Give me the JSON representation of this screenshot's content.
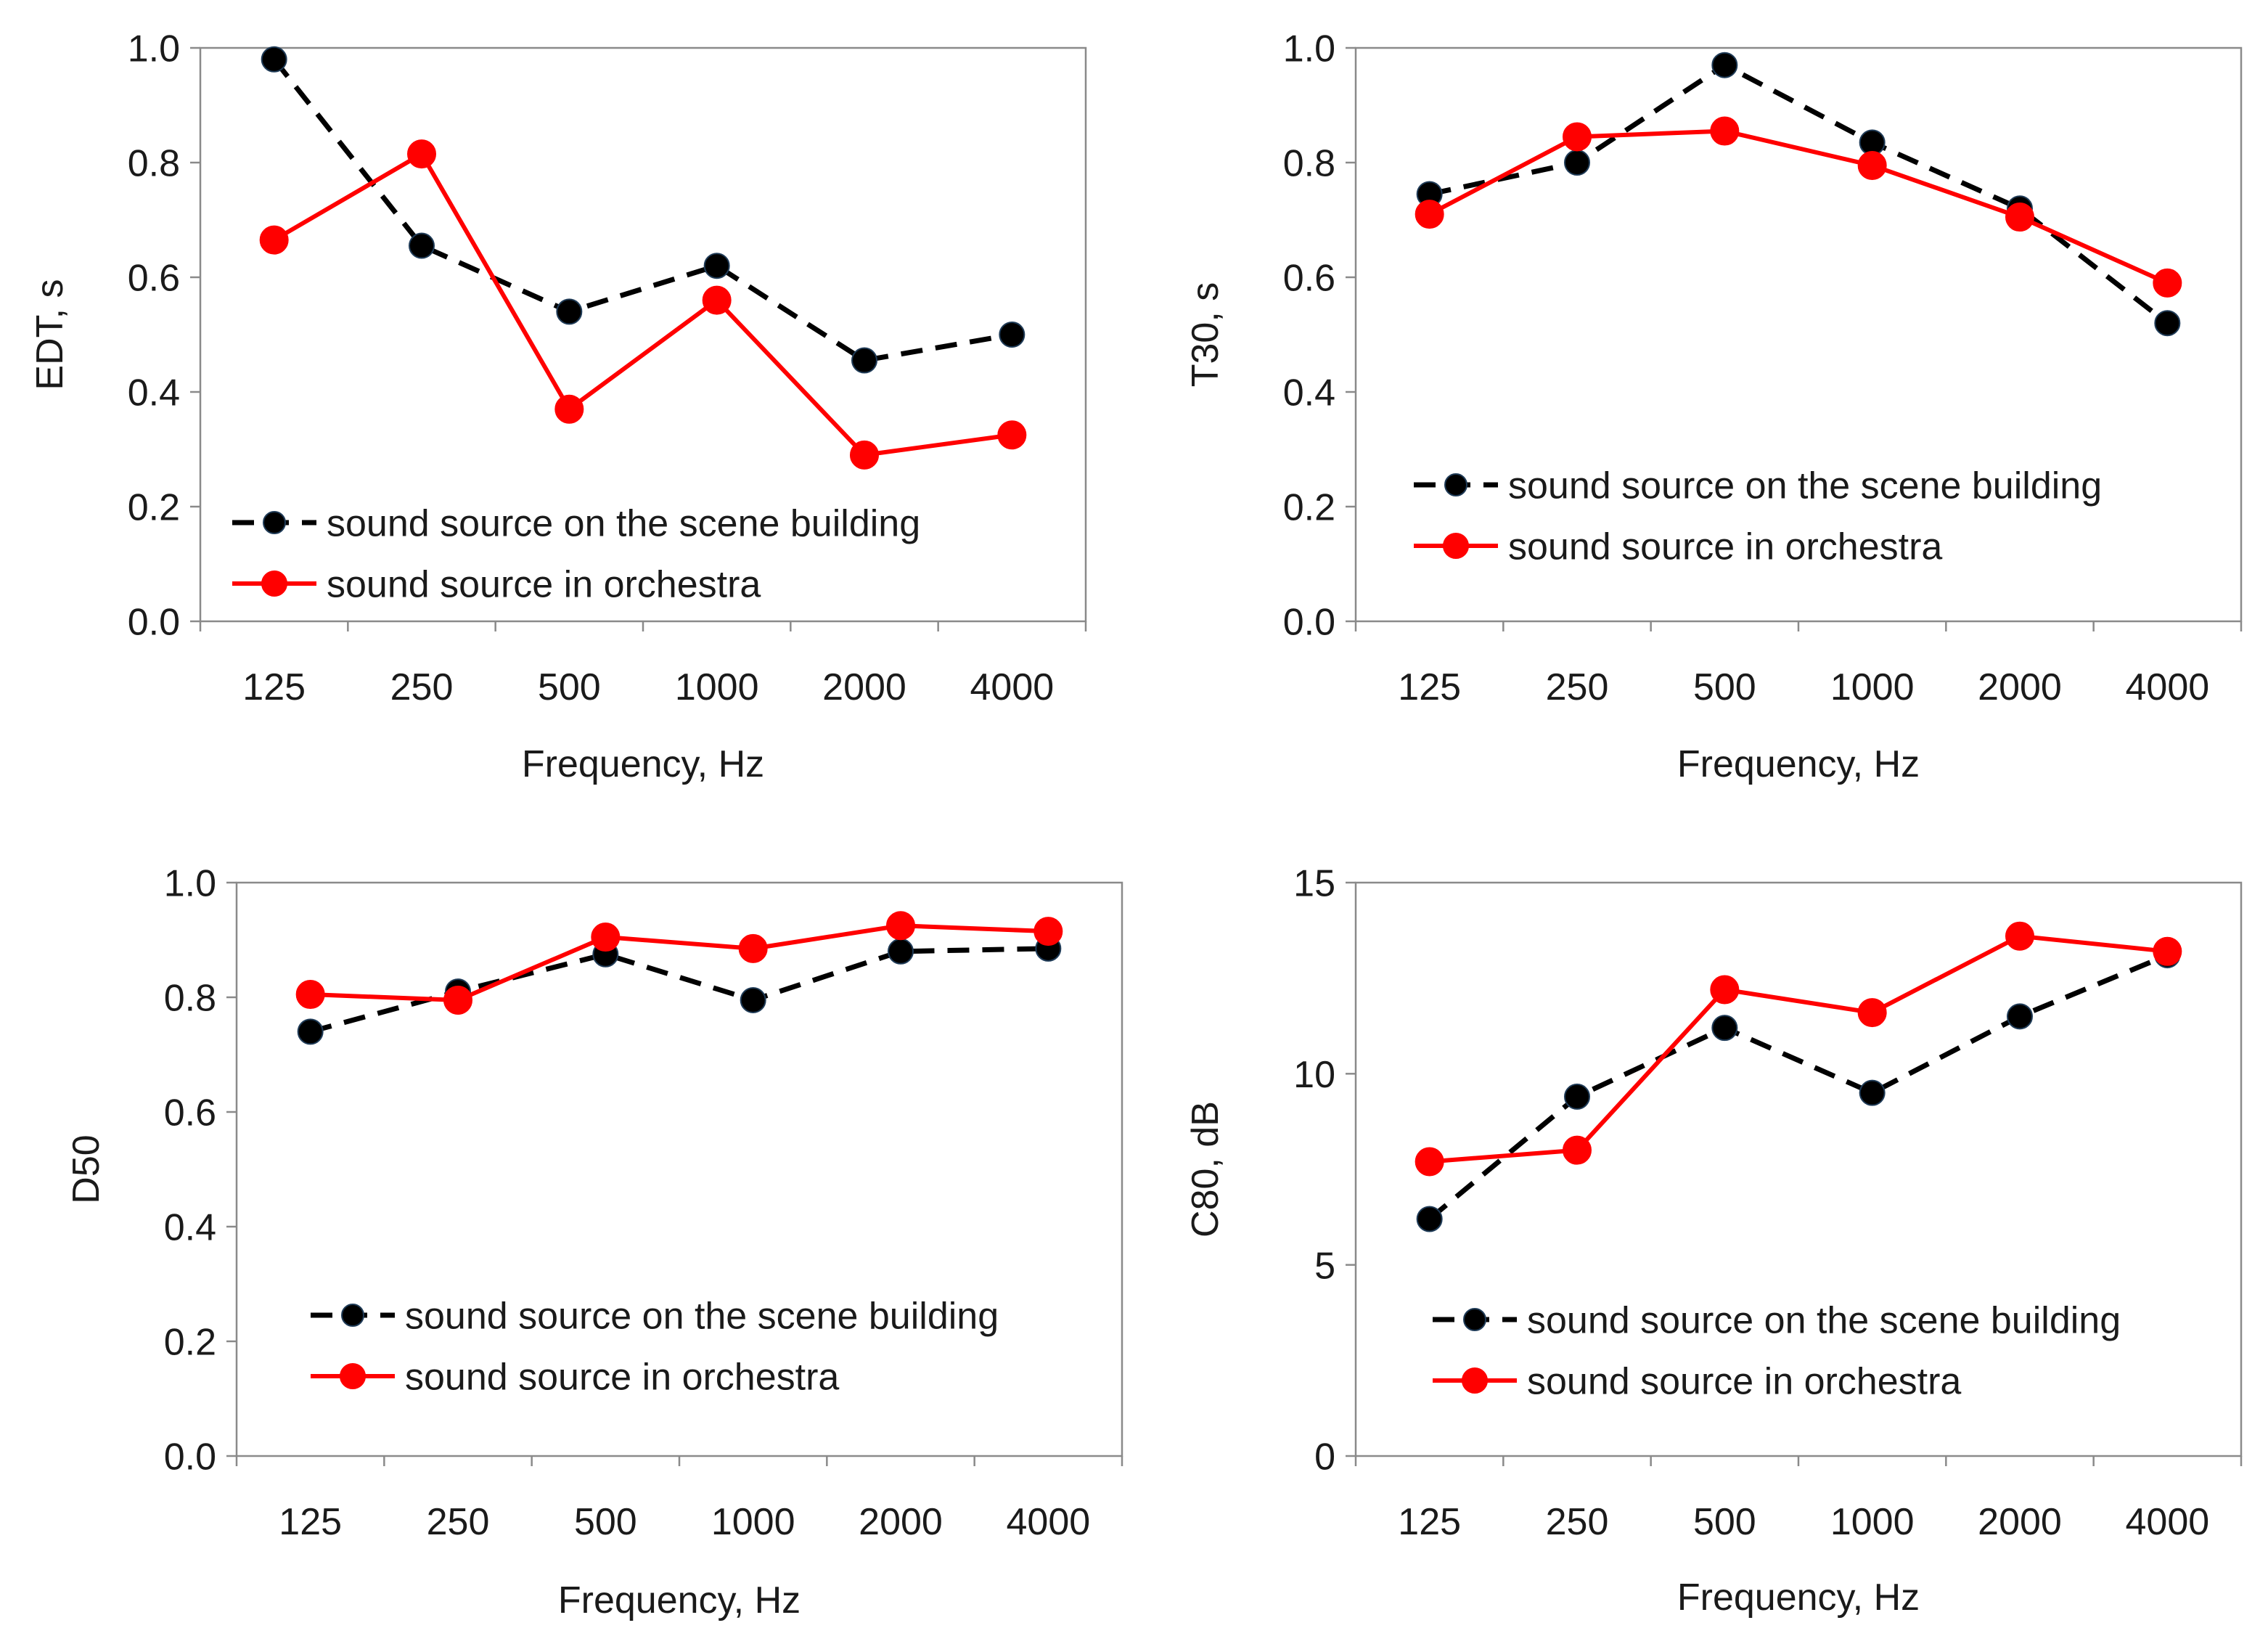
{
  "chart_data": [
    {
      "type": "line",
      "title": "",
      "xlabel": "Frequency, Hz",
      "ylabel": "EDT, s",
      "categories": [
        "125",
        "250",
        "500",
        "1000",
        "2000",
        "4000"
      ],
      "ylim": [
        0,
        1.0
      ],
      "yticks": [
        "0.0",
        "0.2",
        "0.4",
        "0.6",
        "0.8",
        "1.0"
      ],
      "legend_position": "bottom-left",
      "grid": false,
      "series": [
        {
          "name": "sound source on the scene building",
          "color": "#000000",
          "style": "dashed",
          "values": [
            0.98,
            0.655,
            0.54,
            0.62,
            0.455,
            0.5
          ]
        },
        {
          "name": "sound source in orchestra",
          "color": "#ff0000",
          "style": "solid",
          "values": [
            0.665,
            0.815,
            0.37,
            0.56,
            0.29,
            0.325
          ]
        }
      ]
    },
    {
      "type": "line",
      "title": "",
      "xlabel": "Frequency, Hz",
      "ylabel": "T30, s",
      "categories": [
        "125",
        "250",
        "500",
        "1000",
        "2000",
        "4000"
      ],
      "ylim": [
        0,
        1.0
      ],
      "yticks": [
        "0.0",
        "0.2",
        "0.4",
        "0.6",
        "0.8",
        "1.0"
      ],
      "legend_position": "middle-left",
      "grid": false,
      "series": [
        {
          "name": "sound source on the scene building",
          "color": "#000000",
          "style": "dashed",
          "values": [
            0.745,
            0.8,
            0.97,
            0.835,
            0.72,
            0.52
          ]
        },
        {
          "name": "sound source in orchestra",
          "color": "#ff0000",
          "style": "solid",
          "values": [
            0.71,
            0.845,
            0.855,
            0.795,
            0.705,
            0.59
          ]
        }
      ]
    },
    {
      "type": "line",
      "title": "",
      "xlabel": "Frequency, Hz",
      "ylabel": "D50",
      "categories": [
        "125",
        "250",
        "500",
        "1000",
        "2000",
        "4000"
      ],
      "ylim": [
        0,
        1.0
      ],
      "yticks": [
        "0.0",
        "0.2",
        "0.4",
        "0.6",
        "0.8",
        "1.0"
      ],
      "legend_position": "bottom-left",
      "grid": false,
      "series": [
        {
          "name": "sound source on the scene building",
          "color": "#000000",
          "style": "dashed",
          "values": [
            0.74,
            0.81,
            0.875,
            0.795,
            0.88,
            0.885
          ]
        },
        {
          "name": "sound source in orchestra",
          "color": "#ff0000",
          "style": "solid",
          "values": [
            0.805,
            0.795,
            0.905,
            0.885,
            0.925,
            0.915
          ]
        }
      ]
    },
    {
      "type": "line",
      "title": "",
      "xlabel": "Frequency, Hz",
      "ylabel": "C80, dB",
      "categories": [
        "125",
        "250",
        "500",
        "1000",
        "2000",
        "4000"
      ],
      "ylim": [
        0,
        15
      ],
      "yticks": [
        "0",
        "5",
        "10",
        "15"
      ],
      "legend_position": "bottom-left",
      "grid": false,
      "series": [
        {
          "name": "sound source on the scene building",
          "color": "#000000",
          "style": "dashed",
          "values": [
            6.2,
            9.4,
            11.2,
            9.5,
            11.5,
            13.1
          ]
        },
        {
          "name": "sound source in orchestra",
          "color": "#ff0000",
          "style": "solid",
          "values": [
            7.7,
            8.0,
            12.2,
            11.6,
            13.6,
            13.2
          ]
        }
      ]
    }
  ]
}
